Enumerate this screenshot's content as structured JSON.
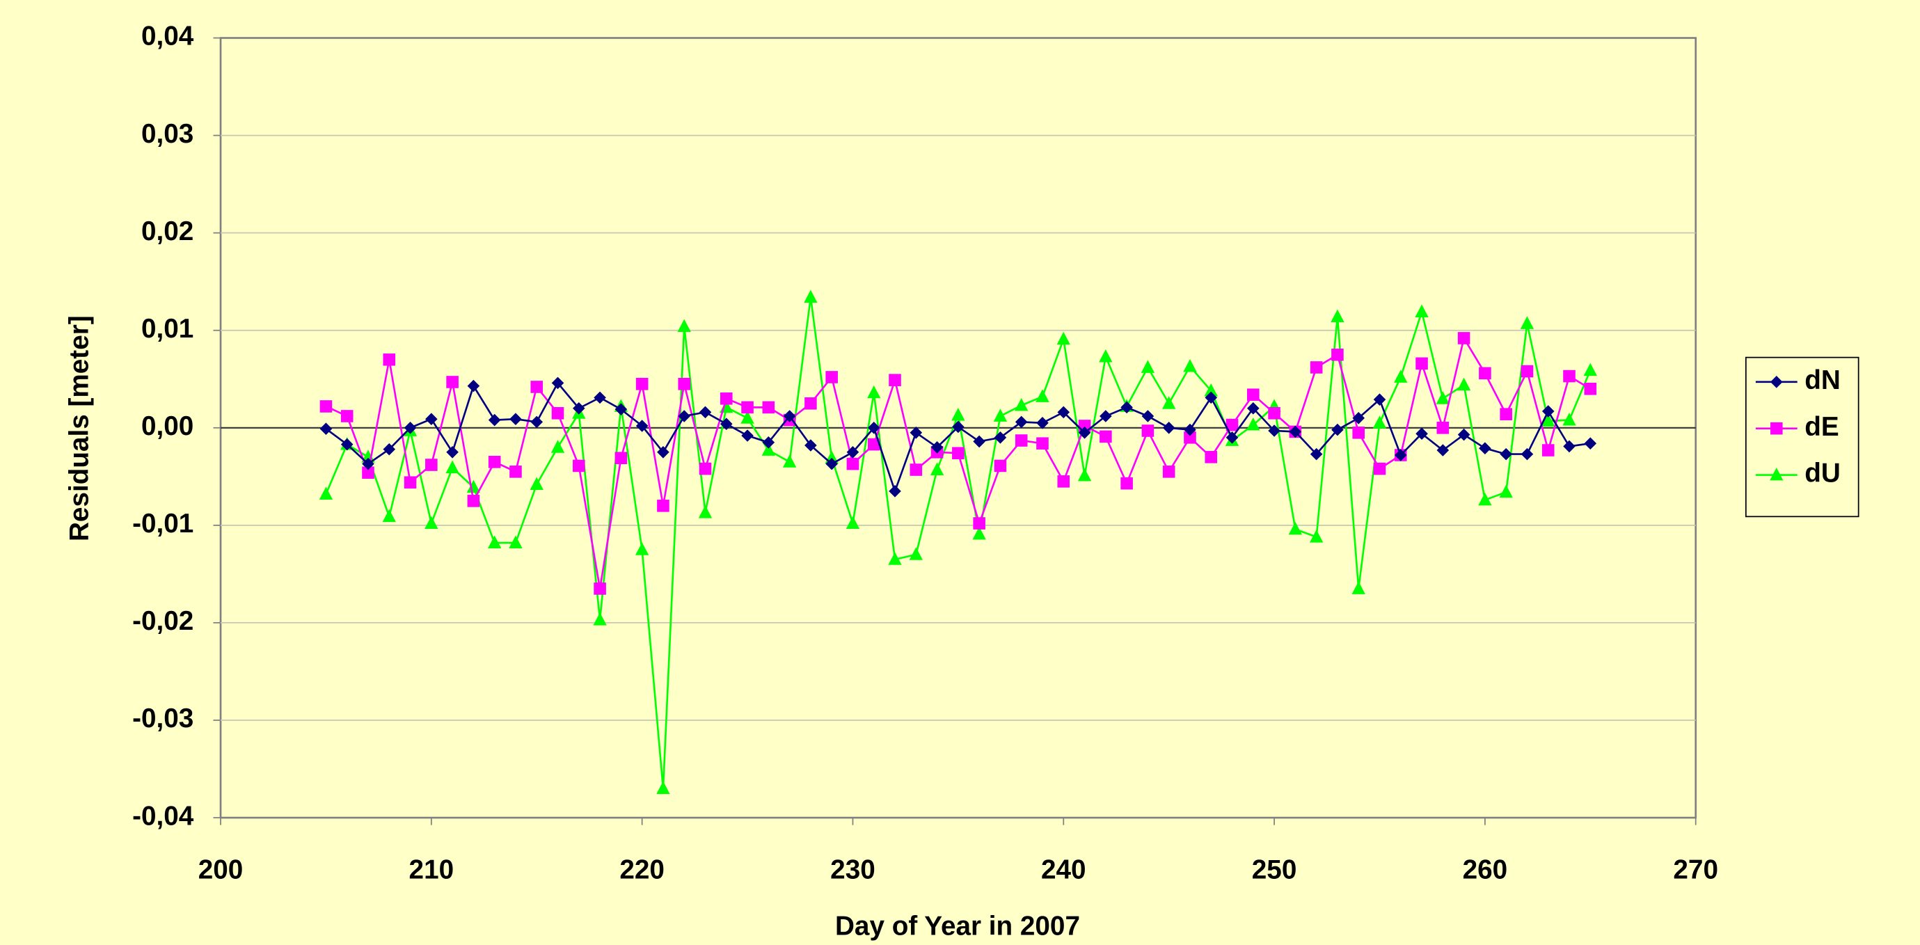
{
  "chart_data": {
    "type": "line",
    "x_label": "Day of Year in 2007",
    "y_label": "Residuals [meter]",
    "x": [
      205,
      206,
      207,
      208,
      209,
      210,
      211,
      212,
      213,
      214,
      215,
      216,
      217,
      218,
      219,
      220,
      221,
      222,
      223,
      224,
      225,
      226,
      227,
      228,
      229,
      230,
      231,
      232,
      233,
      234,
      235,
      236,
      237,
      238,
      239,
      240,
      241,
      242,
      243,
      244,
      245,
      246,
      247,
      248,
      249,
      250,
      251,
      252,
      253,
      254,
      255,
      256,
      257,
      258,
      259,
      260,
      261,
      262,
      263,
      264,
      265
    ],
    "series": [
      {
        "name": "dN",
        "color": "#000080",
        "marker": "diamond",
        "values": [
          -0.0001,
          -0.0017,
          -0.0037,
          -0.0022,
          0.0,
          0.0009,
          -0.0025,
          0.0043,
          0.0008,
          0.0009,
          0.0006,
          0.0046,
          0.002,
          0.0031,
          0.0019,
          0.0002,
          -0.0025,
          0.0012,
          0.0016,
          0.0004,
          -0.0008,
          -0.0015,
          0.0012,
          -0.0018,
          -0.0037,
          -0.0025,
          0.0,
          -0.0065,
          -0.0005,
          -0.002,
          0.0001,
          -0.0014,
          -0.001,
          0.0006,
          0.0005,
          0.0016,
          -0.0005,
          0.0012,
          0.0021,
          0.0012,
          0.0,
          -0.0002,
          0.0031,
          -0.001,
          0.002,
          -0.0003,
          -0.0004,
          -0.0027,
          -0.0002,
          0.001,
          0.0029,
          -0.0028,
          -0.0006,
          -0.0023,
          -0.0007,
          -0.0021,
          -0.0027,
          -0.0027,
          0.0017,
          -0.0019,
          -0.0016
        ]
      },
      {
        "name": "dE",
        "color": "#ff00ff",
        "marker": "square",
        "values": [
          0.0022,
          0.0012,
          -0.0046,
          0.007,
          -0.0056,
          -0.0038,
          0.0047,
          -0.0075,
          -0.0035,
          -0.0045,
          0.0042,
          0.0015,
          -0.0039,
          -0.0165,
          -0.0031,
          0.0045,
          -0.008,
          0.0045,
          -0.0042,
          0.003,
          0.0021,
          0.0021,
          0.0008,
          0.0025,
          0.0052,
          -0.0037,
          -0.0017,
          0.0049,
          -0.0043,
          -0.0025,
          -0.0026,
          -0.0098,
          -0.0039,
          -0.0013,
          -0.0016,
          -0.0055,
          0.0002,
          -0.0009,
          -0.0057,
          -0.0003,
          -0.0045,
          -0.001,
          -0.003,
          0.0003,
          0.0034,
          0.0015,
          -0.0004,
          0.0062,
          0.0075,
          -0.0005,
          -0.0042,
          -0.0028,
          0.0066,
          0.0,
          0.0092,
          0.0056,
          0.0014,
          0.0058,
          -0.0023,
          0.0053,
          0.004
        ]
      },
      {
        "name": "dU",
        "color": "#00ff00",
        "marker": "triangle",
        "values": [
          -0.0068,
          -0.0017,
          -0.003,
          -0.0091,
          -0.0003,
          -0.0098,
          -0.0041,
          -0.0061,
          -0.0118,
          -0.0118,
          -0.0058,
          -0.002,
          0.0015,
          -0.0197,
          0.0022,
          -0.0125,
          -0.037,
          0.0104,
          -0.0087,
          0.0021,
          0.001,
          -0.0023,
          -0.0035,
          0.0134,
          -0.0031,
          -0.0098,
          0.0036,
          -0.0135,
          -0.013,
          -0.0043,
          0.0013,
          -0.0109,
          0.0012,
          0.0023,
          0.0032,
          0.0091,
          -0.0049,
          0.0073,
          0.0022,
          0.0062,
          0.0025,
          0.0063,
          0.0038,
          -0.0013,
          0.0003,
          0.0022,
          -0.0104,
          -0.0112,
          0.0114,
          -0.0165,
          0.0005,
          0.0052,
          0.0119,
          0.003,
          0.0044,
          -0.0074,
          -0.0066,
          0.0107,
          0.0007,
          0.0008,
          0.0059
        ]
      }
    ],
    "xlim": [
      200,
      270
    ],
    "xticks": [
      200,
      210,
      220,
      230,
      240,
      250,
      260,
      270
    ],
    "ylim": [
      -0.04,
      0.04
    ],
    "yticks": [
      {
        "value": -0.04,
        "label": "-0,04"
      },
      {
        "value": -0.03,
        "label": "-0,03"
      },
      {
        "value": -0.02,
        "label": "-0,02"
      },
      {
        "value": -0.01,
        "label": "-0,01"
      },
      {
        "value": 0,
        "label": "0,00"
      },
      {
        "value": 0.01,
        "label": "0,01"
      },
      {
        "value": 0.02,
        "label": "0,02"
      },
      {
        "value": 0.03,
        "label": "0,03"
      },
      {
        "value": 0.04,
        "label": "0,04"
      }
    ],
    "grid": true,
    "legend": "right"
  }
}
